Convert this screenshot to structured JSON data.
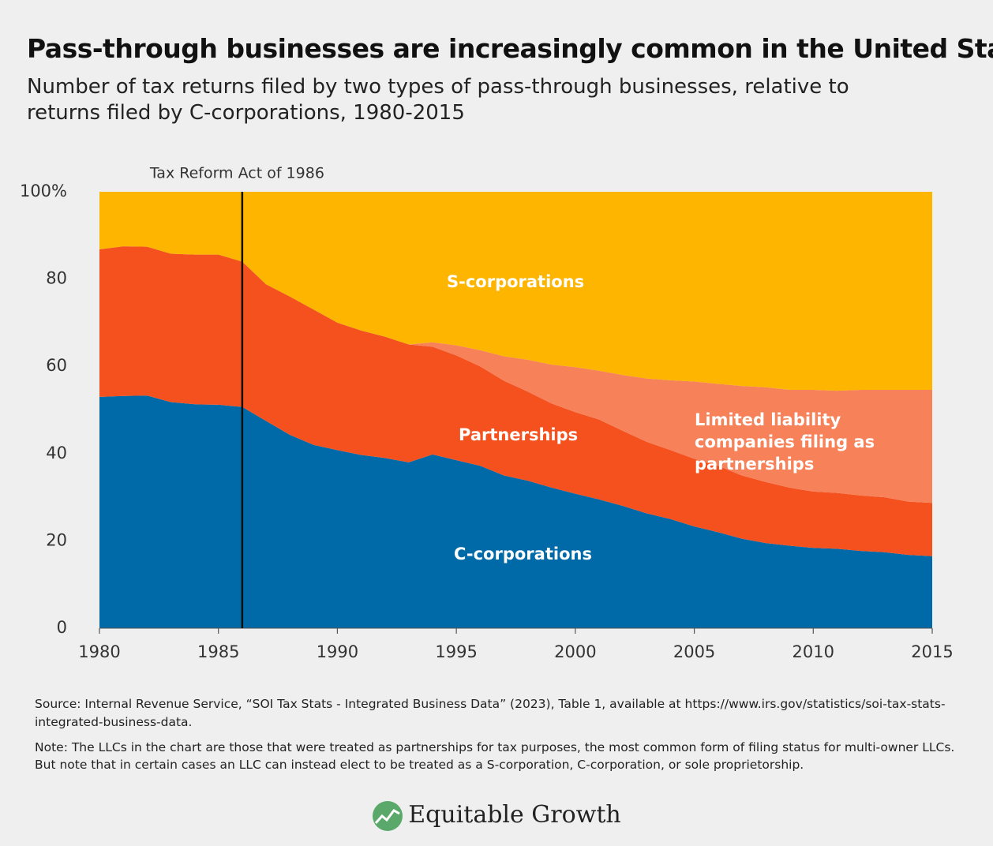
{
  "chart_data": {
    "type": "stacked_area",
    "title": "Pass-through businesses are increasingly common in the United States",
    "subtitle": "Number of tax returns filed by two types of pass-through businesses, relative to returns filed by C-corporations, 1980-2015",
    "x": [
      1980,
      1981,
      1982,
      1983,
      1984,
      1985,
      1986,
      1987,
      1988,
      1989,
      1990,
      1991,
      1992,
      1993,
      1994,
      1995,
      1996,
      1997,
      1998,
      1999,
      2000,
      2001,
      2002,
      2003,
      2004,
      2005,
      2006,
      2007,
      2008,
      2009,
      2010,
      2011,
      2012,
      2013,
      2014,
      2015
    ],
    "series": [
      {
        "name": "C-corporations",
        "color": "#0069a7",
        "values": [
          53,
          53.2,
          53.3,
          51.8,
          51.3,
          51.2,
          50.7,
          47.5,
          44.3,
          42,
          40.8,
          39.7,
          39,
          38,
          39.8,
          38.5,
          37.2,
          35,
          33.8,
          32.2,
          30.8,
          29.5,
          28,
          26.3,
          25,
          23.3,
          22,
          20.5,
          19.5,
          18.9,
          18.4,
          18.2,
          17.7,
          17.4,
          16.8,
          16.5
        ]
      },
      {
        "name": "Partnerships",
        "color": "#f4511e",
        "values": [
          33.8,
          34.3,
          34.1,
          34,
          34.3,
          34.4,
          33.3,
          31.3,
          31.7,
          31,
          29.2,
          28.5,
          27.8,
          27,
          24.7,
          24,
          22.8,
          21.7,
          20.4,
          19.3,
          18.7,
          18.3,
          17.2,
          16.4,
          15.8,
          15.5,
          15.2,
          14.5,
          14,
          13.3,
          12.9,
          12.8,
          12.7,
          12.6,
          12.2,
          12.2
        ]
      },
      {
        "name": "Limited liability companies filing as partnerships",
        "color": "#f7825a",
        "values": [
          0,
          0,
          0,
          0,
          0,
          0,
          0,
          0,
          0,
          0,
          0,
          0,
          0,
          0,
          1,
          2.3,
          3.7,
          5.6,
          7.3,
          8.9,
          10.3,
          11.2,
          12.8,
          14.5,
          16,
          17.7,
          18.8,
          20.5,
          21.7,
          22.4,
          23.3,
          23.4,
          24.2,
          24.6,
          25.6,
          25.9
        ]
      },
      {
        "name": "S-corporations",
        "color": "#fdb500",
        "values": [
          13.2,
          12.5,
          12.6,
          14.2,
          14.4,
          14.4,
          16,
          21.2,
          24,
          27,
          30,
          31.8,
          33.2,
          35,
          34.5,
          35.2,
          36.3,
          37.7,
          38.5,
          39.6,
          40.2,
          41,
          42,
          42.8,
          43.2,
          43.5,
          44,
          44.5,
          44.8,
          45.4,
          45.4,
          45.6,
          45.4,
          45.4,
          45.4,
          45.4
        ]
      }
    ],
    "xlim": [
      1980,
      2015
    ],
    "xticks": [
      1980,
      1985,
      1990,
      1995,
      2000,
      2005,
      2010,
      2015
    ],
    "ylim": [
      0,
      100
    ],
    "yticks": [
      0,
      20,
      40,
      60,
      80,
      {
        "value": 100,
        "label": "100%"
      }
    ],
    "annotations": [
      {
        "text": "Tax Reform Act of 1986",
        "x": 1986
      }
    ],
    "source": "Source: Internal Revenue Service, “SOI Tax Stats - Integrated Business Data” (2023), Table 1, available at https://www.irs.gov/statistics/soi-tax-stats-integrated-business-data.",
    "note": "Note: The LLCs in the chart are those that were treated as partnerships for tax purposes, the most common form of filing status for multi-owner LLCs. But note that in certain cases an LLC can instead elect to be treated as a S-corporation, C-corporation, or sole proprietorship.",
    "brand": "Equitable Growth"
  }
}
